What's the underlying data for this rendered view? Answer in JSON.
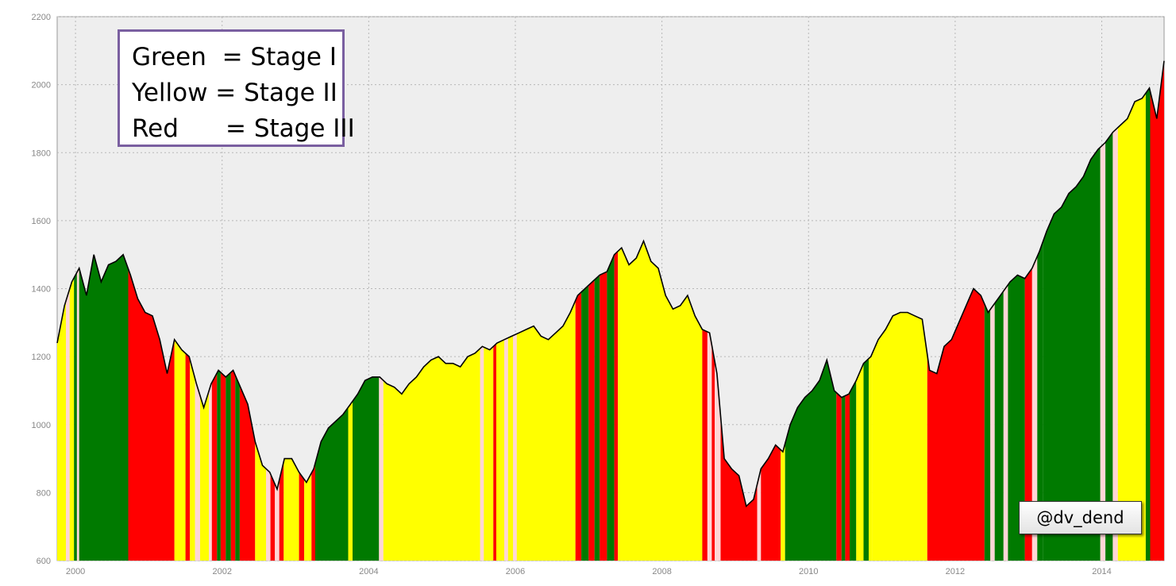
{
  "chart_data": {
    "type": "area",
    "title": "",
    "xlabel": "",
    "ylabel": "",
    "xlim": [
      1999.75,
      2014.85
    ],
    "ylim": [
      600,
      2200
    ],
    "y_ticks": [
      600,
      800,
      1000,
      1200,
      1400,
      1600,
      1800,
      2000,
      2200
    ],
    "x_ticks": [
      2000,
      2002,
      2004,
      2006,
      2008,
      2010,
      2012,
      2014
    ],
    "grid": true,
    "colors": {
      "green": "#007a00",
      "yellow": "#ffff00",
      "red": "#ff0000",
      "light": "#ffd6d6",
      "line": "#000000",
      "plot_bg": "#eeeeee",
      "grid": "#b8b8b8"
    },
    "series": [
      {
        "x": [
          1999.75,
          1999.85,
          1999.95,
          2000.05,
          2000.15,
          2000.25,
          2000.35,
          2000.45,
          2000.55,
          2000.65,
          2000.75,
          2000.85,
          2000.95,
          2001.05,
          2001.15,
          2001.25,
          2001.35,
          2001.45,
          2001.55,
          2001.65,
          2001.75,
          2001.85,
          2001.95,
          2002.05,
          2002.15,
          2002.25,
          2002.35,
          2002.45,
          2002.55,
          2002.65,
          2002.75,
          2002.85,
          2002.95,
          2003.05,
          2003.15,
          2003.25,
          2003.35,
          2003.45,
          2003.55,
          2003.65,
          2003.75,
          2003.85,
          2003.95,
          2004.05,
          2004.15,
          2004.25,
          2004.35,
          2004.45,
          2004.55,
          2004.65,
          2004.75,
          2004.85,
          2004.95,
          2005.05,
          2005.15,
          2005.25,
          2005.35,
          2005.45,
          2005.55,
          2005.65,
          2005.75,
          2005.85,
          2005.95,
          2006.05,
          2006.15,
          2006.25,
          2006.35,
          2006.45,
          2006.55,
          2006.65,
          2006.75,
          2006.85,
          2006.95,
          2007.05,
          2007.15,
          2007.25,
          2007.35,
          2007.45,
          2007.55,
          2007.65,
          2007.75,
          2007.85,
          2007.95,
          2008.05,
          2008.15,
          2008.25,
          2008.35,
          2008.45,
          2008.55,
          2008.65,
          2008.75,
          2008.85,
          2008.95,
          2009.05,
          2009.15,
          2009.25,
          2009.35,
          2009.45,
          2009.55,
          2009.65,
          2009.75,
          2009.85,
          2009.95,
          2010.05,
          2010.15,
          2010.25,
          2010.35,
          2010.45,
          2010.55,
          2010.65,
          2010.75,
          2010.85,
          2010.95,
          2011.05,
          2011.15,
          2011.25,
          2011.35,
          2011.45,
          2011.55,
          2011.65,
          2011.75,
          2011.85,
          2011.95,
          2012.05,
          2012.15,
          2012.25,
          2012.35,
          2012.45,
          2012.55,
          2012.65,
          2012.75,
          2012.85,
          2012.95,
          2013.05,
          2013.15,
          2013.25,
          2013.35,
          2013.45,
          2013.55,
          2013.65,
          2013.75,
          2013.85,
          2013.95,
          2014.05,
          2014.15,
          2014.25,
          2014.35,
          2014.45,
          2014.55,
          2014.65,
          2014.75,
          2014.85
        ],
        "y": [
          1240,
          1350,
          1420,
          1460,
          1380,
          1500,
          1420,
          1470,
          1480,
          1500,
          1440,
          1370,
          1330,
          1320,
          1250,
          1150,
          1250,
          1220,
          1200,
          1120,
          1050,
          1120,
          1160,
          1140,
          1160,
          1110,
          1060,
          950,
          880,
          860,
          810,
          900,
          900,
          860,
          830,
          870,
          950,
          990,
          1010,
          1030,
          1060,
          1090,
          1130,
          1140,
          1140,
          1120,
          1110,
          1090,
          1120,
          1140,
          1170,
          1190,
          1200,
          1180,
          1180,
          1170,
          1200,
          1210,
          1230,
          1220,
          1240,
          1250,
          1260,
          1270,
          1280,
          1290,
          1260,
          1250,
          1270,
          1290,
          1330,
          1380,
          1400,
          1420,
          1440,
          1450,
          1500,
          1520,
          1470,
          1490,
          1540,
          1480,
          1460,
          1380,
          1340,
          1350,
          1380,
          1320,
          1280,
          1270,
          1150,
          900,
          870,
          850,
          760,
          780,
          870,
          900,
          940,
          920,
          1000,
          1050,
          1080,
          1100,
          1130,
          1190,
          1100,
          1080,
          1090,
          1130,
          1180,
          1200,
          1250,
          1280,
          1320,
          1330,
          1330,
          1320,
          1310,
          1160,
          1150,
          1230,
          1250,
          1300,
          1350,
          1400,
          1380,
          1330,
          1360,
          1390,
          1420,
          1440,
          1430,
          1460,
          1510,
          1570,
          1620,
          1640,
          1680,
          1700,
          1730,
          1780,
          1810,
          1830,
          1860,
          1880,
          1900,
          1950,
          1960,
          1990,
          1900,
          2070
        ]
      }
    ],
    "stage_bands": [
      {
        "start": 1999.75,
        "end": 1999.87,
        "stage": "yellow"
      },
      {
        "start": 1999.87,
        "end": 1999.92,
        "stage": "light"
      },
      {
        "start": 1999.92,
        "end": 1999.98,
        "stage": "yellow"
      },
      {
        "start": 1999.98,
        "end": 2000.02,
        "stage": "green"
      },
      {
        "start": 2000.02,
        "end": 2000.05,
        "stage": "light"
      },
      {
        "start": 2000.05,
        "end": 2000.72,
        "stage": "green"
      },
      {
        "start": 2000.72,
        "end": 2001.35,
        "stage": "red"
      },
      {
        "start": 2001.35,
        "end": 2001.5,
        "stage": "yellow"
      },
      {
        "start": 2001.5,
        "end": 2001.56,
        "stage": "red"
      },
      {
        "start": 2001.56,
        "end": 2001.63,
        "stage": "yellow"
      },
      {
        "start": 2001.63,
        "end": 2001.7,
        "stage": "light"
      },
      {
        "start": 2001.7,
        "end": 2001.82,
        "stage": "yellow"
      },
      {
        "start": 2001.82,
        "end": 2001.86,
        "stage": "light"
      },
      {
        "start": 2001.86,
        "end": 2001.93,
        "stage": "red"
      },
      {
        "start": 2001.93,
        "end": 2001.98,
        "stage": "green"
      },
      {
        "start": 2001.98,
        "end": 2002.05,
        "stage": "red"
      },
      {
        "start": 2002.05,
        "end": 2002.12,
        "stage": "green"
      },
      {
        "start": 2002.12,
        "end": 2002.18,
        "stage": "red"
      },
      {
        "start": 2002.18,
        "end": 2002.24,
        "stage": "green"
      },
      {
        "start": 2002.24,
        "end": 2002.45,
        "stage": "red"
      },
      {
        "start": 2002.45,
        "end": 2002.6,
        "stage": "yellow"
      },
      {
        "start": 2002.6,
        "end": 2002.66,
        "stage": "light"
      },
      {
        "start": 2002.66,
        "end": 2002.72,
        "stage": "red"
      },
      {
        "start": 2002.72,
        "end": 2002.78,
        "stage": "light"
      },
      {
        "start": 2002.78,
        "end": 2002.84,
        "stage": "red"
      },
      {
        "start": 2002.84,
        "end": 2003.05,
        "stage": "yellow"
      },
      {
        "start": 2003.05,
        "end": 2003.12,
        "stage": "red"
      },
      {
        "start": 2003.12,
        "end": 2003.22,
        "stage": "yellow"
      },
      {
        "start": 2003.22,
        "end": 2003.27,
        "stage": "red"
      },
      {
        "start": 2003.27,
        "end": 2003.33,
        "stage": "green"
      },
      {
        "start": 2003.33,
        "end": 2003.72,
        "stage": "green"
      },
      {
        "start": 2003.72,
        "end": 2003.78,
        "stage": "yellow"
      },
      {
        "start": 2003.78,
        "end": 2004.14,
        "stage": "green"
      },
      {
        "start": 2004.14,
        "end": 2004.2,
        "stage": "light"
      },
      {
        "start": 2004.2,
        "end": 2005.52,
        "stage": "yellow"
      },
      {
        "start": 2005.52,
        "end": 2005.57,
        "stage": "light"
      },
      {
        "start": 2005.57,
        "end": 2005.7,
        "stage": "yellow"
      },
      {
        "start": 2005.7,
        "end": 2005.74,
        "stage": "red"
      },
      {
        "start": 2005.74,
        "end": 2005.85,
        "stage": "yellow"
      },
      {
        "start": 2005.85,
        "end": 2005.9,
        "stage": "light"
      },
      {
        "start": 2005.9,
        "end": 2005.97,
        "stage": "yellow"
      },
      {
        "start": 2005.97,
        "end": 2006.02,
        "stage": "light"
      },
      {
        "start": 2006.02,
        "end": 2006.82,
        "stage": "yellow"
      },
      {
        "start": 2006.82,
        "end": 2006.9,
        "stage": "red"
      },
      {
        "start": 2006.9,
        "end": 2007.0,
        "stage": "green"
      },
      {
        "start": 2007.0,
        "end": 2007.08,
        "stage": "red"
      },
      {
        "start": 2007.08,
        "end": 2007.15,
        "stage": "green"
      },
      {
        "start": 2007.15,
        "end": 2007.25,
        "stage": "red"
      },
      {
        "start": 2007.25,
        "end": 2007.35,
        "stage": "green"
      },
      {
        "start": 2007.35,
        "end": 2007.4,
        "stage": "red"
      },
      {
        "start": 2007.4,
        "end": 2008.55,
        "stage": "yellow"
      },
      {
        "start": 2008.55,
        "end": 2008.62,
        "stage": "red"
      },
      {
        "start": 2008.62,
        "end": 2008.68,
        "stage": "light"
      },
      {
        "start": 2008.68,
        "end": 2008.72,
        "stage": "red"
      },
      {
        "start": 2008.72,
        "end": 2008.8,
        "stage": "light"
      },
      {
        "start": 2008.8,
        "end": 2009.3,
        "stage": "red"
      },
      {
        "start": 2009.3,
        "end": 2009.35,
        "stage": "light"
      },
      {
        "start": 2009.35,
        "end": 2009.62,
        "stage": "red"
      },
      {
        "start": 2009.62,
        "end": 2009.68,
        "stage": "yellow"
      },
      {
        "start": 2009.68,
        "end": 2010.38,
        "stage": "green"
      },
      {
        "start": 2010.38,
        "end": 2010.45,
        "stage": "red"
      },
      {
        "start": 2010.45,
        "end": 2010.5,
        "stage": "green"
      },
      {
        "start": 2010.5,
        "end": 2010.56,
        "stage": "red"
      },
      {
        "start": 2010.56,
        "end": 2010.65,
        "stage": "green"
      },
      {
        "start": 2010.65,
        "end": 2010.75,
        "stage": "yellow"
      },
      {
        "start": 2010.75,
        "end": 2010.82,
        "stage": "green"
      },
      {
        "start": 2010.82,
        "end": 2010.87,
        "stage": "yellow"
      },
      {
        "start": 2010.87,
        "end": 2011.62,
        "stage": "yellow"
      },
      {
        "start": 2011.62,
        "end": 2012.4,
        "stage": "red"
      },
      {
        "start": 2012.4,
        "end": 2012.48,
        "stage": "green"
      },
      {
        "start": 2012.48,
        "end": 2012.54,
        "stage": "light"
      },
      {
        "start": 2012.54,
        "end": 2012.66,
        "stage": "green"
      },
      {
        "start": 2012.66,
        "end": 2012.72,
        "stage": "light"
      },
      {
        "start": 2012.72,
        "end": 2012.95,
        "stage": "green"
      },
      {
        "start": 2012.95,
        "end": 2013.05,
        "stage": "red"
      },
      {
        "start": 2013.05,
        "end": 2013.12,
        "stage": "light"
      },
      {
        "start": 2013.12,
        "end": 2013.2,
        "stage": "green"
      },
      {
        "start": 2013.2,
        "end": 2013.98,
        "stage": "green"
      },
      {
        "start": 2013.98,
        "end": 2014.05,
        "stage": "light"
      },
      {
        "start": 2014.05,
        "end": 2014.15,
        "stage": "green"
      },
      {
        "start": 2014.15,
        "end": 2014.22,
        "stage": "light"
      },
      {
        "start": 2014.22,
        "end": 2014.6,
        "stage": "yellow"
      },
      {
        "start": 2014.6,
        "end": 2014.66,
        "stage": "green"
      },
      {
        "start": 2014.66,
        "end": 2014.85,
        "stage": "red"
      }
    ],
    "legend": {
      "placement": "top-left",
      "lines": [
        "Green  = Stage I",
        "Yellow = Stage II",
        "Red      = Stage III"
      ]
    },
    "annotations": [
      "@dv_dend"
    ]
  }
}
